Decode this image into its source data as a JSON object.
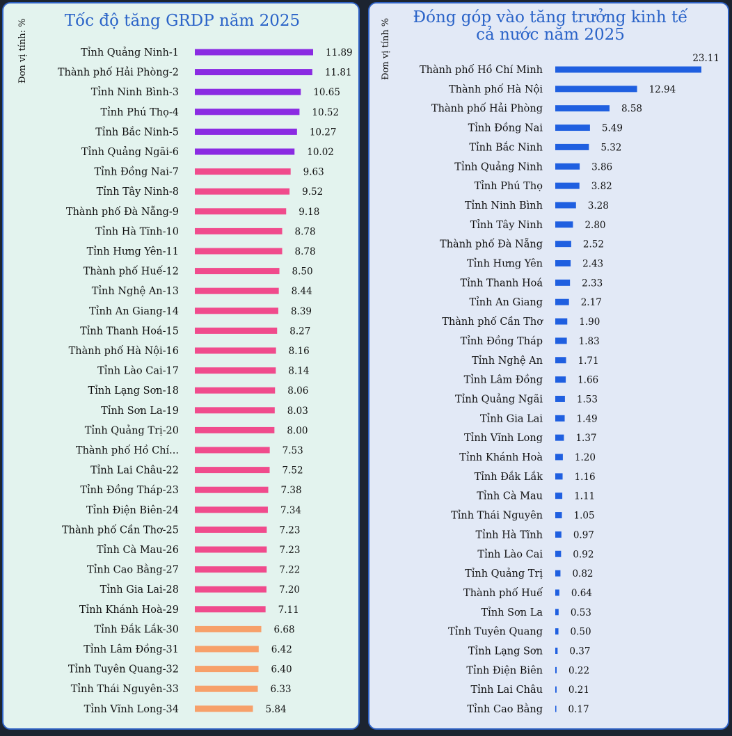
{
  "colors": {
    "purple": "#8a2be2",
    "pink": "#f04b8c",
    "orange": "#f7a06a",
    "blue": "#1f5fe0"
  },
  "chart_data": [
    {
      "type": "bar",
      "orientation": "horizontal",
      "title": "Tốc độ tăng GRDP năm 2025",
      "unit_label": "Đơn vị tính: %",
      "categories": [
        "Tỉnh Quảng Ninh-1",
        "Thành phố Hải Phòng-2",
        "Tỉnh Ninh Bình-3",
        "Tỉnh Phú Thọ-4",
        "Tỉnh Bắc Ninh-5",
        "Tỉnh Quảng Ngãi-6",
        "Tỉnh Đồng Nai-7",
        "Tỉnh Tây Ninh-8",
        "Thành phố Đà Nẵng-9",
        "Tỉnh Hà Tĩnh-10",
        "Tỉnh Hưng Yên-11",
        "Thành phố Huế-12",
        "Tỉnh Nghệ An-13",
        "Tỉnh An Giang-14",
        "Tỉnh Thanh Hoá-15",
        "Thành phố Hà Nội-16",
        "Tỉnh Lào Cai-17",
        "Tỉnh Lạng Sơn-18",
        "Tỉnh Sơn La-19",
        "Tỉnh Quảng Trị-20",
        "Thành phố Hồ Chí...",
        "Tỉnh Lai Châu-22",
        "Tỉnh Đồng Tháp-23",
        "Tỉnh Điện Biên-24",
        "Thành phố Cần Thơ-25",
        "Tỉnh Cà Mau-26",
        "Tỉnh Cao Bằng-27",
        "Tỉnh Gia Lai-28",
        "Tỉnh Khánh Hoà-29",
        "Tỉnh Đắk Lắk-30",
        "Tỉnh Lâm Đồng-31",
        "Tỉnh Tuyên Quang-32",
        "Tỉnh Thái Nguyên-33",
        "Tỉnh Vĩnh Long-34"
      ],
      "values": [
        11.89,
        11.81,
        10.65,
        10.52,
        10.27,
        10.02,
        9.63,
        9.52,
        9.18,
        8.78,
        8.78,
        8.5,
        8.44,
        8.39,
        8.27,
        8.16,
        8.14,
        8.06,
        8.03,
        8.0,
        7.53,
        7.52,
        7.38,
        7.34,
        7.23,
        7.23,
        7.22,
        7.2,
        7.11,
        6.68,
        6.42,
        6.4,
        6.33,
        5.84
      ],
      "value_labels": [
        "11.89",
        "11.81",
        "10.65",
        "10.52",
        "10.27",
        "10.02",
        "9.63",
        "9.52",
        "9.18",
        "8.78",
        "8.78",
        "8.50",
        "8.44",
        "8.39",
        "8.27",
        "8.16",
        "8.14",
        "8.06",
        "8.03",
        "8.00",
        "7.53",
        "7.52",
        "7.38",
        "7.34",
        "7.23",
        "7.23",
        "7.22",
        "7.20",
        "7.11",
        "6.68",
        "6.42",
        "6.40",
        "6.33",
        "5.84"
      ],
      "bar_colors": [
        "purple",
        "purple",
        "purple",
        "purple",
        "purple",
        "purple",
        "pink",
        "pink",
        "pink",
        "pink",
        "pink",
        "pink",
        "pink",
        "pink",
        "pink",
        "pink",
        "pink",
        "pink",
        "pink",
        "pink",
        "pink",
        "pink",
        "pink",
        "pink",
        "pink",
        "pink",
        "pink",
        "pink",
        "pink",
        "orange",
        "orange",
        "orange",
        "orange",
        "orange"
      ],
      "xlim": [
        0,
        11.89
      ]
    },
    {
      "type": "bar",
      "orientation": "horizontal",
      "title": "Đóng góp vào tăng trưởng kinh tế cả nước năm 2025",
      "title_lines": [
        "Đóng góp vào tăng trưởng kinh tế",
        "cả nước năm 2025"
      ],
      "unit_label": "Đơn vị tính %",
      "categories": [
        "Thành phố Hồ Chí Minh",
        "Thành phố Hà Nội",
        "Thành phố Hải Phòng",
        "Tỉnh Đồng Nai",
        "Tỉnh Bắc Ninh",
        "Tỉnh Quảng Ninh",
        "Tỉnh Phú Thọ",
        "Tỉnh Ninh Bình",
        "Tỉnh Tây Ninh",
        "Thành phố Đà Nẵng",
        "Tỉnh Hưng Yên",
        "Tỉnh Thanh Hoá",
        "Tỉnh An Giang",
        "Thành phố Cần Thơ",
        "Tỉnh Đồng Tháp",
        "Tỉnh Nghệ An",
        "Tỉnh Lâm Đồng",
        "Tỉnh Quảng Ngãi",
        "Tỉnh Gia Lai",
        "Tỉnh Vĩnh Long",
        "Tỉnh Khánh Hoà",
        "Tỉnh Đắk Lắk",
        "Tỉnh Cà Mau",
        "Tỉnh Thái Nguyên",
        "Tỉnh Hà Tĩnh",
        "Tỉnh Lào Cai",
        "Tỉnh Quảng Trị",
        "Thành phố Huế",
        "Tỉnh Sơn La",
        "Tỉnh Tuyên Quang",
        "Tỉnh Lạng Sơn",
        "Tỉnh Điện Biên",
        "Tỉnh Lai Châu",
        "Tỉnh Cao Bằng"
      ],
      "values": [
        23.11,
        12.94,
        8.58,
        5.49,
        5.32,
        3.86,
        3.82,
        3.28,
        2.8,
        2.52,
        2.43,
        2.33,
        2.17,
        1.9,
        1.83,
        1.71,
        1.66,
        1.53,
        1.49,
        1.37,
        1.2,
        1.16,
        1.11,
        1.05,
        0.97,
        0.92,
        0.82,
        0.64,
        0.53,
        0.5,
        0.37,
        0.22,
        0.21,
        0.17
      ],
      "value_labels": [
        "23.11",
        "12.94",
        "8.58",
        "5.49",
        "5.32",
        "3.86",
        "3.82",
        "3.28",
        "2.80",
        "2.52",
        "2.43",
        "2.33",
        "2.17",
        "1.90",
        "1.83",
        "1.71",
        "1.66",
        "1.53",
        "1.49",
        "1.37",
        "1.20",
        "1.16",
        "1.11",
        "1.05",
        "0.97",
        "0.92",
        "0.82",
        "0.64",
        "0.53",
        "0.50",
        "0.37",
        "0.22",
        "0.21",
        "0.17"
      ],
      "bar_color": "blue",
      "xlim": [
        0,
        23.11
      ]
    }
  ]
}
